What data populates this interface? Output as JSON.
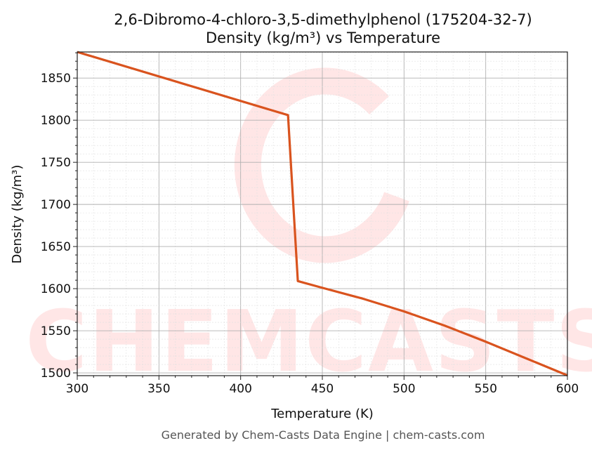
{
  "chart_data": {
    "type": "line",
    "title": "2,6-Dibromo-4-chloro-3,5-dimethylphenol (175204-32-7)",
    "subtitle": "Density (kg/m³) vs Temperature",
    "xlabel": "Temperature (K)",
    "ylabel": "Density (kg/m³)",
    "xlim": [
      300,
      600
    ],
    "ylim": [
      1496.7,
      1881
    ],
    "xticks": [
      300,
      350,
      400,
      450,
      500,
      550,
      600
    ],
    "yticks": [
      1500,
      1550,
      1600,
      1650,
      1700,
      1750,
      1800,
      1850
    ],
    "grid": true,
    "series": [
      {
        "color": "#d9531e",
        "x": [
          300,
          429,
          435,
          450,
          475,
          500,
          525,
          550,
          575,
          600
        ],
        "y": [
          1881,
          1806,
          1609,
          1601,
          1588,
          1573,
          1556,
          1537,
          1517,
          1497
        ]
      }
    ],
    "watermark": "CHEMCASTS",
    "footer": "Generated by Chem-Casts Data Engine | chem-casts.com"
  }
}
